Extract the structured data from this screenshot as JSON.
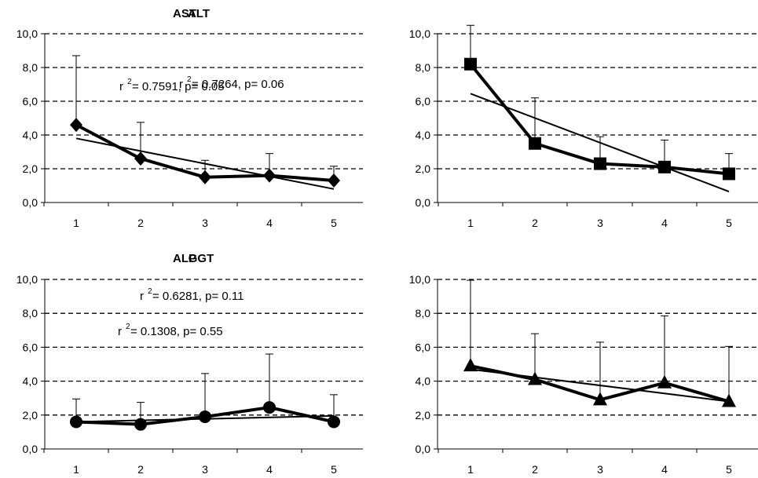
{
  "chart_data": [
    {
      "type": "line",
      "title": "AST",
      "categories": [
        "1",
        "2",
        "3",
        "4",
        "5"
      ],
      "ytick_labels": [
        "0,0",
        "2,0",
        "4,0",
        "6,0",
        "8,0",
        "10,0"
      ],
      "ylim": [
        0,
        10
      ],
      "grid": "dashed horizontal",
      "marker": "diamond",
      "series": [
        {
          "values": [
            4.6,
            2.6,
            1.5,
            1.6,
            1.3
          ],
          "error_upper": [
            8.7,
            4.75,
            2.5,
            2.9,
            2.15
          ]
        }
      ],
      "trendline": [
        3.8,
        0.8
      ],
      "annotation": {
        "prefix": "r",
        "sup": "2",
        "text": " = 0.7591, p= 0.05"
      }
    },
    {
      "type": "line",
      "title": "ALT",
      "categories": [
        "1",
        "2",
        "3",
        "4",
        "5"
      ],
      "ytick_labels": [
        "0,0",
        "2,0",
        "4,0",
        "6,0",
        "8,0",
        "10,0"
      ],
      "ylim": [
        0,
        10
      ],
      "grid": "dashed horizontal",
      "marker": "square",
      "series": [
        {
          "values": [
            8.2,
            3.5,
            2.3,
            2.1,
            1.7
          ],
          "error_upper": [
            10.5,
            6.2,
            3.9,
            3.7,
            2.9
          ]
        }
      ],
      "trendline": [
        6.45,
        0.65
      ],
      "annotation": {
        "prefix": "r",
        "sup": "2",
        "text": " = 0.7264, p= 0.06"
      }
    },
    {
      "type": "line",
      "title": "ALP",
      "categories": [
        "1",
        "2",
        "3",
        "4",
        "5"
      ],
      "ytick_labels": [
        "0,0",
        "2,0",
        "4,0",
        "6,0",
        "8,0",
        "10,0"
      ],
      "ylim": [
        0,
        10
      ],
      "grid": "dashed horizontal",
      "marker": "circle",
      "series": [
        {
          "values": [
            1.6,
            1.45,
            1.9,
            2.45,
            1.6
          ],
          "error_upper": [
            2.95,
            2.75,
            4.45,
            5.6,
            3.2
          ]
        }
      ],
      "trendline": [
        1.6,
        1.95
      ],
      "annotation": {
        "prefix": "r",
        "sup": "2",
        "text": " = 0.1308, p= 0.55"
      }
    },
    {
      "type": "line",
      "title": "GGT",
      "categories": [
        "1",
        "2",
        "3",
        "4",
        "5"
      ],
      "ytick_labels": [
        "0,0",
        "2,0",
        "4,0",
        "6,0",
        "8,0",
        "10,0"
      ],
      "ylim": [
        0,
        10
      ],
      "grid": "dashed horizontal",
      "marker": "triangle",
      "series": [
        {
          "values": [
            4.9,
            4.1,
            2.9,
            3.9,
            2.8
          ],
          "error_upper": [
            9.95,
            6.8,
            6.3,
            7.85,
            6.05
          ]
        }
      ],
      "trendline": [
        4.7,
        2.8
      ],
      "annotation": {
        "prefix": "r",
        "sup": "2",
        "text": " = 0.6281, p= 0.11"
      }
    }
  ]
}
